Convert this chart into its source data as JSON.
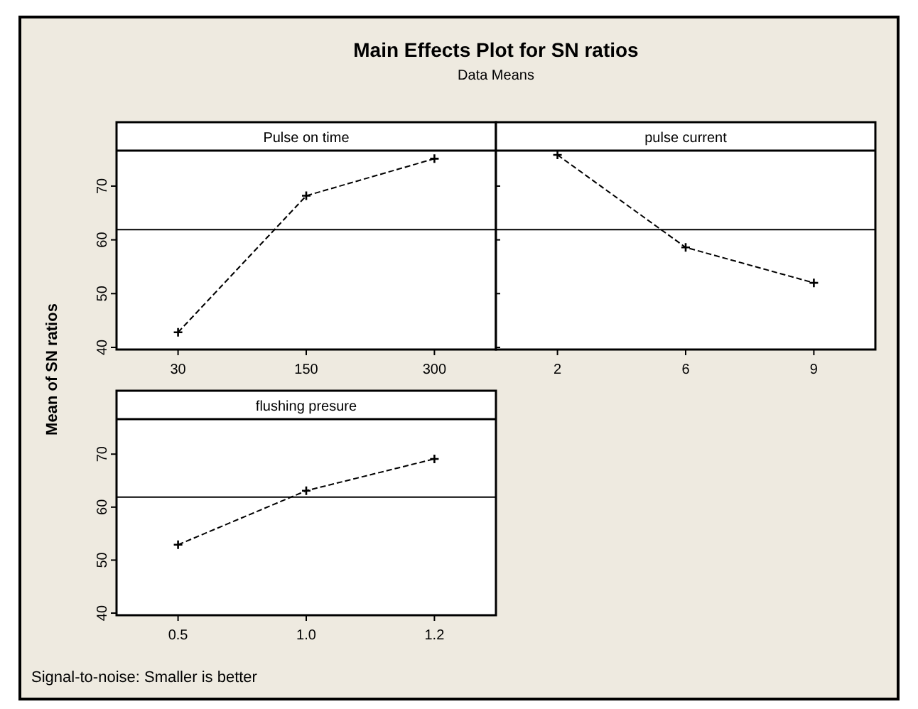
{
  "chart_data": [
    {
      "type": "line",
      "title": "Main Effects Plot for SN ratios",
      "subtitle": "Data Means",
      "ylabel": "Mean of SN ratios",
      "xlabel": "Pulse on time",
      "annotations": [
        "Signal-to-noise: Smaller is better"
      ],
      "categories": [
        "30",
        "150",
        "300"
      ],
      "series": [
        {
          "color": "#000000",
          "values": [
            42.8,
            68.2,
            75.1
          ]
        }
      ],
      "ylim": [
        39.6,
        76.6
      ],
      "yticks": [
        40,
        50,
        60,
        70
      ],
      "ref_lines": [
        {
          "axis": "y",
          "value": 61.9,
          "color": "#000000"
        }
      ],
      "marker": "cross",
      "line_style": "dashed",
      "grid": false
    },
    {
      "type": "line",
      "xlabel": "pulse current",
      "categories": [
        "2",
        "6",
        "9"
      ],
      "series": [
        {
          "color": "#000000",
          "values": [
            75.8,
            58.6,
            52.0
          ]
        }
      ],
      "ylim": [
        39.6,
        76.6
      ],
      "yticks": [
        40,
        50,
        60,
        70
      ],
      "tick_labels": "x",
      "ref_lines": [
        {
          "axis": "y",
          "value": 61.9,
          "color": "#000000"
        }
      ],
      "marker": "cross",
      "line_style": "dashed",
      "grid": false
    },
    {
      "type": "line",
      "xlabel": "flushing presure",
      "categories": [
        "0.5",
        "1.0",
        "1.2"
      ],
      "series": [
        {
          "color": "#000000",
          "values": [
            52.9,
            63.1,
            69.1
          ]
        }
      ],
      "ylim": [
        39.6,
        76.6
      ],
      "yticks": [
        40,
        50,
        60,
        70
      ],
      "ref_lines": [
        {
          "axis": "y",
          "value": 61.9,
          "color": "#000000"
        }
      ],
      "marker": "cross",
      "line_style": "dashed",
      "grid": false
    }
  ]
}
